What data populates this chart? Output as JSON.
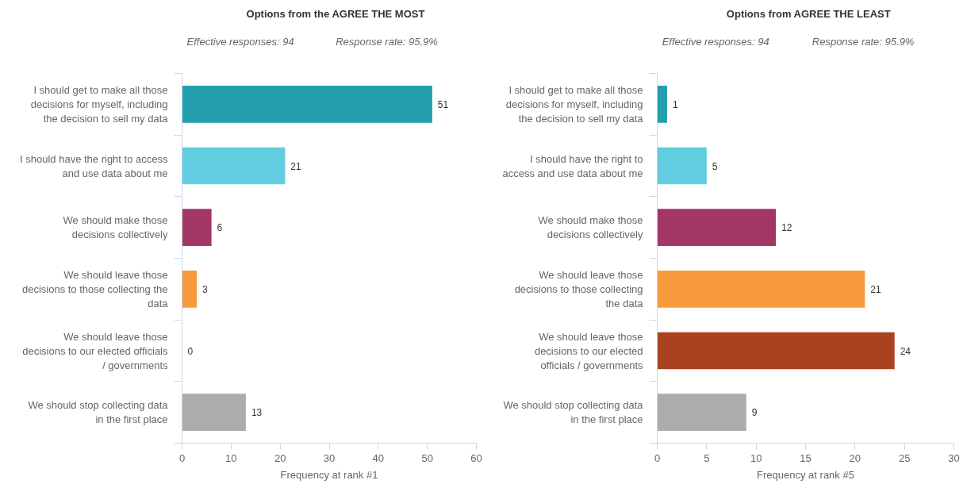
{
  "chart_data": [
    {
      "type": "bar",
      "orientation": "horizontal",
      "title": "Options from the AGREE THE MOST",
      "annotations": [
        "Effective responses: 94",
        "Response rate: 95.9%"
      ],
      "categories": [
        "I should get to make all those decisions for myself, including the decision to sell my data",
        "I should have the right to access and use data about me",
        "We should make those decisions collectively",
        "We should leave those decisions to those collecting the data",
        "We should leave those decisions to our elected officials / governments",
        "We should stop collecting data in the first place"
      ],
      "values": [
        51,
        21,
        6,
        3,
        0,
        13
      ],
      "colors": [
        "#239fae",
        "#62cce0",
        "#a23766",
        "#f79a3c",
        "#aa4220",
        "#acacac"
      ],
      "xlabel": "Frequency at rank #1",
      "xlim": [
        0,
        60
      ],
      "xticks": [
        0,
        10,
        20,
        30,
        40,
        50,
        60
      ],
      "data_labels": true
    },
    {
      "type": "bar",
      "orientation": "horizontal",
      "title": "Options from AGREE THE LEAST",
      "annotations": [
        "Effective responses: 94",
        "Response rate: 95.9%"
      ],
      "categories": [
        "I should get to make all those decisions for myself, including the decision to sell my data",
        "I should have the right to access and use data about me",
        "We should make those decisions collectively",
        "We should leave those decisions to those collecting the data",
        "We should leave those decisions to our elected officials / governments",
        "We should stop collecting data in the first place"
      ],
      "values": [
        1,
        5,
        12,
        21,
        24,
        9
      ],
      "colors": [
        "#239fae",
        "#62cce0",
        "#a23766",
        "#f79a3c",
        "#aa4220",
        "#acacac"
      ],
      "xlabel": "Frequency at rank #5",
      "xlim": [
        0,
        30
      ],
      "xticks": [
        0,
        5,
        10,
        15,
        20,
        25,
        30
      ],
      "data_labels": true
    }
  ]
}
